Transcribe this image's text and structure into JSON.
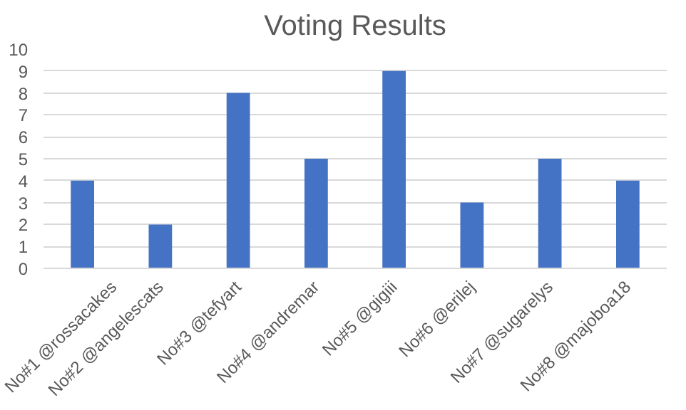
{
  "chart_data": {
    "type": "bar",
    "title": "Voting Results",
    "categories": [
      "No#1 @rossacakes",
      "No#2 @angelescats",
      "No#3 @tefyart",
      "No#4 @andremar",
      "No#5 @gigiii",
      "No#6 @erilej",
      "No#7 @sugarelys",
      "No#8 @majoboa18"
    ],
    "values": [
      4,
      2,
      8,
      5,
      9,
      3,
      5,
      4
    ],
    "color": "#4472c4",
    "ylim": [
      0,
      10
    ],
    "yticks": [
      0,
      1,
      2,
      3,
      4,
      5,
      6,
      7,
      8,
      9,
      10
    ],
    "grid": "y"
  }
}
